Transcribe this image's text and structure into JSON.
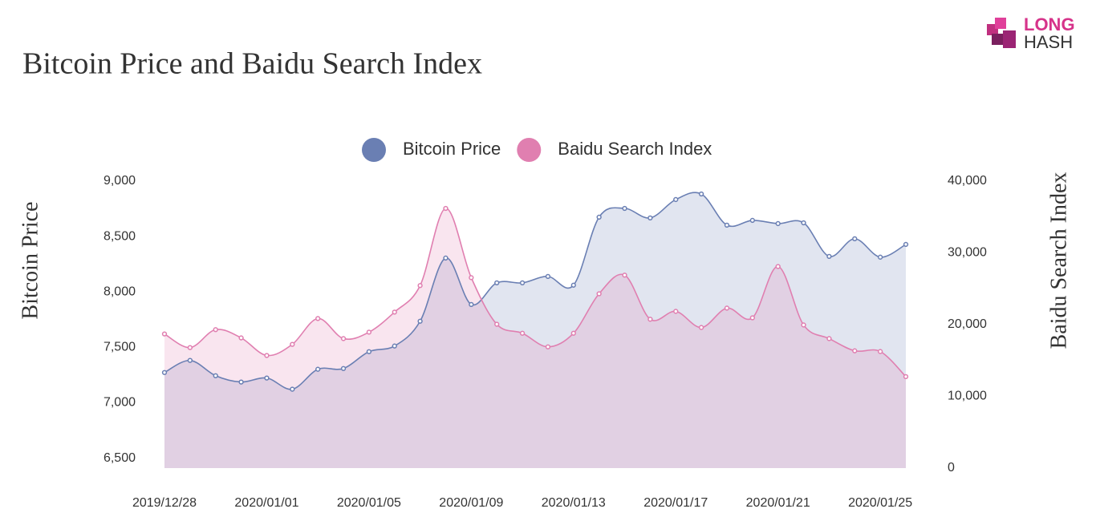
{
  "logo": {
    "top": "LONG",
    "bottom": "HASH"
  },
  "chart_data": {
    "type": "line",
    "title": "Bitcoin Price and Baidu Search Index",
    "y_label": "Bitcoin Price",
    "y2_label": "Baidu Search Index",
    "x": [
      "2019/12/28",
      null,
      null,
      null,
      "2020/01/01",
      null,
      null,
      null,
      "2020/01/05",
      null,
      null,
      null,
      "2020/01/09",
      null,
      null,
      null,
      "2020/01/13",
      null,
      null,
      null,
      "2020/01/17",
      null,
      null,
      null,
      "2020/01/21",
      null,
      null,
      null,
      "2020/01/25",
      null
    ],
    "series": [
      {
        "name": "Bitcoin Price",
        "color": "#6a7fb3",
        "axis": "y",
        "values": [
          7273,
          7382,
          7244,
          7187,
          7223,
          7122,
          7302,
          7309,
          7461,
          7512,
          7736,
          8306,
          7887,
          8082,
          8082,
          8140,
          8061,
          8675,
          8754,
          8668,
          8834,
          8884,
          8603,
          8646,
          8617,
          8624,
          8321,
          8480,
          8314,
          8429
        ]
      },
      {
        "name": "Baidu Search Index",
        "color": "#e07fb0",
        "axis": "y2",
        "values": [
          18700,
          16800,
          19300,
          18150,
          15700,
          17250,
          20850,
          18050,
          18950,
          21750,
          25450,
          36200,
          26550,
          20050,
          18800,
          16900,
          18800,
          24300,
          26900,
          20750,
          21850,
          19600,
          22300,
          20950,
          28100,
          19950,
          18050,
          16350,
          16250,
          12750
        ]
      }
    ],
    "ylim": [
      6410,
      9000
    ],
    "yticks": [
      {
        "value": 6500,
        "label": "6,500"
      },
      {
        "value": 7000,
        "label": "7,000"
      },
      {
        "value": 7500,
        "label": "7,500"
      },
      {
        "value": 8000,
        "label": "8,000"
      },
      {
        "value": 8500,
        "label": "8,500"
      },
      {
        "value": 9000,
        "label": "9,000"
      }
    ],
    "y2lim": [
      0,
      40000
    ],
    "y2ticks": [
      0,
      {
        "value": 10000,
        "label": "10,000"
      },
      {
        "value": 20000,
        "label": "20,000"
      },
      {
        "value": 30000,
        "label": "30,000"
      },
      {
        "value": 40000,
        "label": "40,000"
      }
    ],
    "legend": "top"
  }
}
